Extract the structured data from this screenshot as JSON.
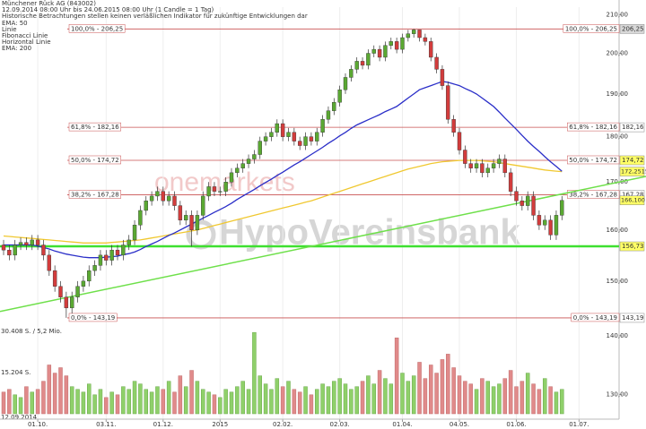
{
  "chart_data": {
    "type": "candlestick",
    "title": "Münchener Rück AG (843002)",
    "subtitle": "12.09.2014 08:00 Uhr bis 24.06.2015 08:00 Uhr (1 Candle = 1 Tag)",
    "disclaimer": "Historische Betrachtungen stellen keinen verläßlichen Indikator für zukünftige Entwicklungen dar",
    "categories": [
      "12.09.2014",
      null,
      null,
      null,
      null,
      null,
      "01.10.",
      null,
      null,
      null,
      null,
      null,
      null,
      null,
      null,
      null,
      null,
      null,
      "03.11.",
      null,
      null,
      null,
      null,
      null,
      null,
      null,
      null,
      null,
      "01.12.",
      null,
      null,
      null,
      null,
      null,
      null,
      null,
      null,
      null,
      "2015",
      null,
      null,
      null,
      null,
      null,
      null,
      null,
      null,
      null,
      null,
      "02.02.",
      null,
      null,
      null,
      null,
      null,
      null,
      null,
      null,
      null,
      "02.03.",
      null,
      null,
      null,
      null,
      null,
      null,
      null,
      null,
      null,
      null,
      "01.04.",
      null,
      null,
      null,
      null,
      null,
      null,
      null,
      null,
      null,
      "04.05.",
      null,
      null,
      null,
      null,
      null,
      null,
      null,
      null,
      null,
      "01.06.",
      null,
      null,
      null,
      null,
      null,
      null,
      null,
      null,
      null,
      null,
      "01.07."
    ],
    "open": [
      157,
      156,
      155,
      157,
      157.5,
      157,
      158,
      157,
      155,
      152,
      149,
      147,
      145,
      147,
      149,
      150,
      152,
      153,
      155,
      154,
      156,
      155,
      157,
      158,
      161,
      164,
      166,
      167,
      168,
      166,
      167,
      165,
      162,
      163,
      160,
      163,
      167,
      169,
      168,
      168,
      170,
      172,
      173,
      174,
      175,
      176,
      179,
      180,
      181,
      183,
      180,
      181,
      179,
      178,
      180,
      179,
      181,
      184,
      186,
      188,
      191,
      194,
      196,
      198,
      197,
      200,
      201,
      199,
      202,
      203,
      201,
      204,
      205,
      206,
      204,
      203,
      199,
      196,
      192,
      184,
      181,
      177,
      174,
      173,
      174,
      172,
      173,
      174,
      175,
      172,
      168,
      166,
      165,
      167,
      163,
      161,
      162,
      159,
      163,
      null,
      null,
      null
    ],
    "high": [
      158,
      157,
      158,
      158.5,
      158.5,
      159,
      159,
      158,
      156,
      153,
      150,
      148,
      148,
      150,
      151,
      153,
      154,
      156,
      156,
      157,
      157,
      158,
      159,
      162,
      165,
      167,
      168,
      169,
      169,
      168,
      168,
      166,
      164,
      164,
      164,
      168,
      170,
      170,
      169,
      171,
      173,
      174,
      175,
      176,
      177,
      180,
      181,
      182,
      184,
      184,
      182,
      182,
      180,
      181,
      181,
      182,
      185,
      187,
      189,
      192,
      195,
      197,
      199,
      199,
      201,
      202,
      202,
      203,
      204,
      204,
      205,
      206,
      206.25,
      206,
      205,
      204,
      200,
      197,
      193,
      185,
      182,
      178,
      175,
      175,
      175,
      174,
      175,
      176,
      176,
      173,
      169,
      167,
      168,
      168,
      164,
      163,
      163,
      164,
      167,
      null,
      null,
      null
    ],
    "low": [
      155,
      154,
      154,
      156,
      156,
      156,
      156,
      154,
      151,
      148,
      146,
      143.19,
      144,
      146,
      148,
      149,
      151,
      152,
      153,
      153,
      154,
      154,
      156,
      157,
      160,
      163,
      165,
      166,
      165,
      165,
      164,
      161,
      161,
      156.7,
      159,
      162,
      166,
      167,
      167,
      167,
      169,
      171,
      172,
      173,
      174,
      175,
      178,
      179,
      180,
      179,
      179,
      178,
      177,
      177,
      178,
      178,
      180,
      183,
      185,
      187,
      190,
      193,
      195,
      196,
      196,
      199,
      198,
      198,
      201,
      200,
      200,
      203,
      204,
      203,
      202,
      198,
      195,
      191,
      183,
      180,
      176,
      173,
      172,
      172,
      171,
      171,
      172,
      173,
      171,
      167,
      165,
      164,
      164,
      162,
      160,
      160,
      158,
      158,
      162,
      null,
      null,
      null
    ],
    "close": [
      156,
      155,
      157,
      157.5,
      157,
      158,
      157,
      155,
      152,
      149,
      147,
      145,
      147,
      149,
      150,
      152,
      153,
      155,
      154,
      156,
      155,
      157,
      158,
      161,
      164,
      166,
      167,
      168,
      166,
      167,
      165,
      162,
      163,
      160,
      163,
      167,
      169,
      168,
      168,
      170,
      172,
      173,
      174,
      175,
      176,
      179,
      180,
      181,
      183,
      180,
      181,
      179,
      178,
      180,
      179,
      181,
      184,
      186,
      188,
      191,
      194,
      196,
      198,
      197,
      200,
      201,
      199,
      202,
      203,
      201,
      204,
      205,
      206,
      204,
      203,
      199,
      196,
      192,
      184,
      181,
      177,
      174,
      173,
      174,
      172,
      173,
      174,
      175,
      172,
      168,
      166,
      165,
      167,
      163,
      161,
      162,
      159,
      163,
      166.1,
      null,
      null,
      null
    ],
    "up_color": "#5aa832",
    "down_color": "#d23c3c",
    "ylim": [
      126,
      212
    ],
    "log_scale": true,
    "yticks": [
      {
        "value": 210,
        "label": "210,00"
      },
      {
        "value": 200,
        "label": "200,00"
      },
      {
        "value": 190,
        "label": "190,00"
      },
      {
        "value": 180,
        "label": "180,00"
      },
      {
        "value": 170,
        "label": "170,00"
      },
      {
        "value": 160,
        "label": "160,00"
      },
      {
        "value": 150,
        "label": "150,00"
      },
      {
        "value": 140,
        "label": "140,00"
      },
      {
        "value": 130,
        "label": "130,00"
      }
    ],
    "grid": true,
    "ema50": {
      "name": "EMA: 50",
      "color": "#2a2ec8",
      "values": [
        157,
        157,
        157,
        157,
        157,
        157,
        156.8,
        156.5,
        156.2,
        155.8,
        155.5,
        155.2,
        155,
        154.8,
        154.6,
        154.5,
        154.5,
        154.5,
        154.6,
        154.7,
        154.8,
        155.1,
        155.3,
        155.6,
        156.1,
        156.7,
        157.2,
        157.7,
        158.3,
        158.9,
        159.4,
        160,
        160.6,
        161.2,
        161.8,
        162.4,
        163,
        163.6,
        164.2,
        164.8,
        165.5,
        166.3,
        167,
        167.7,
        168.4,
        169.2,
        169.9,
        170.6,
        171.4,
        172.1,
        172.9,
        173.7,
        174.4,
        175.2,
        176,
        176.8,
        177.6,
        178.5,
        179.3,
        180.2,
        181,
        181.9,
        182.7,
        183.3,
        183.9,
        184.5,
        185.1,
        185.8,
        186.4,
        187,
        188,
        189,
        190,
        191,
        191.5,
        192,
        192.5,
        193,
        192.8,
        192.4,
        192,
        191.3,
        190.7,
        190,
        189,
        188,
        187,
        185.7,
        184.3,
        183,
        181.7,
        180.3,
        179,
        177.8,
        176.7,
        175.5,
        174.4,
        173.4,
        172.3,
        null,
        null,
        null
      ]
    },
    "trendline": {
      "name": "Linie",
      "color": "#6ee04a",
      "start": 144.5,
      "end": 168.2
    },
    "fibonacci": {
      "name": "Fibonacci Linie",
      "color": "#c85050",
      "levels": [
        {
          "value": 206.25,
          "label": "100,0% - 206,25",
          "box": "206,25",
          "box_color": "#d8d8d8"
        },
        {
          "value": 182.16,
          "label": "61,8% - 182,16",
          "box": "182,16",
          "box_color": "#ffffff"
        },
        {
          "value": 174.72,
          "label": "50,0% - 174,72",
          "box": "174,72",
          "box_color": "#ffff66"
        },
        {
          "value": 167.28,
          "label": "38,2% - 167,28",
          "box": "167,28",
          "box_color": "#ffffff"
        },
        {
          "value": 143.19,
          "label": "0,0% - 143,19",
          "box": "143,19",
          "box_color": "#ffffff"
        }
      ]
    },
    "horizontal_line": {
      "name": "Horizontal Linie",
      "color": "#3ee030",
      "value": 156.73,
      "label": "156,73"
    },
    "ema200": {
      "name": "EMA: 200",
      "color": "#f0c830",
      "values": [
        158.8,
        158.7,
        158.6,
        158.5,
        158.4,
        158.3,
        158.2,
        158.1,
        158,
        157.9,
        157.8,
        157.7,
        157.6,
        157.5,
        157.4,
        157.4,
        157.4,
        157.4,
        157.4,
        157.5,
        157.6,
        157.7,
        157.8,
        157.9,
        158,
        158.2,
        158.4,
        158.6,
        158.8,
        159,
        159.2,
        159.4,
        159.6,
        159.8,
        160,
        160.3,
        160.6,
        160.9,
        161.2,
        161.5,
        161.8,
        162.1,
        162.4,
        162.7,
        163,
        163.3,
        163.6,
        163.9,
        164.2,
        164.5,
        164.8,
        165.1,
        165.4,
        165.7,
        166,
        166.4,
        166.8,
        167.2,
        167.6,
        168,
        168.4,
        168.8,
        169.2,
        169.6,
        170,
        170.4,
        170.8,
        171.2,
        171.6,
        172,
        172.4,
        172.8,
        173.1,
        173.4,
        173.7,
        174,
        174.2,
        174.4,
        174.5,
        174.6,
        174.7,
        174.7,
        174.7,
        174.7,
        174.6,
        174.5,
        174.4,
        174.2,
        174,
        173.8,
        173.6,
        173.4,
        173.2,
        173,
        172.8,
        172.6,
        172.45,
        172.35,
        172.25,
        null,
        null,
        null
      ]
    },
    "price_boxes": [
      {
        "value": 172.2515,
        "label": "172,2515",
        "color": "#ffff66"
      },
      {
        "value": 166.1,
        "label": "166,100",
        "color": "#ffff66"
      }
    ],
    "volume": {
      "up_color": "#8fd06a",
      "down_color": "#e08a8a",
      "values": [
        8000,
        9000,
        7000,
        6000,
        10000,
        8000,
        9000,
        12000,
        18000,
        15000,
        17000,
        14000,
        10000,
        9000,
        8000,
        11000,
        7000,
        9000,
        6000,
        8000,
        7000,
        10000,
        9000,
        12000,
        11000,
        9000,
        8000,
        10000,
        9000,
        12000,
        8000,
        14000,
        10000,
        16000,
        12000,
        9000,
        8000,
        7000,
        6000,
        9000,
        8000,
        10000,
        12000,
        9000,
        30000,
        14000,
        11000,
        9000,
        13000,
        10000,
        12000,
        9000,
        8000,
        10000,
        7000,
        9000,
        11000,
        10000,
        12000,
        13000,
        11000,
        9000,
        10000,
        12000,
        14000,
        11000,
        16000,
        13000,
        11000,
        28000,
        15000,
        12000,
        14000,
        19000,
        13000,
        18000,
        15000,
        20000,
        22000,
        17000,
        14000,
        12000,
        11000,
        9000,
        13000,
        12000,
        10000,
        11000,
        13000,
        16000,
        10000,
        12000,
        15000,
        11000,
        9000,
        13000,
        10000,
        8000,
        9000,
        null,
        null,
        null
      ],
      "vlim": [
        0,
        36000
      ],
      "vticks": [
        {
          "value": 30408,
          "label": "30.408 S. / 5,2 Mio."
        },
        {
          "value": 15204,
          "label": "15.204 S."
        }
      ]
    },
    "watermark": [
      "onemarkets",
      "HypoVereinsbank"
    ]
  }
}
